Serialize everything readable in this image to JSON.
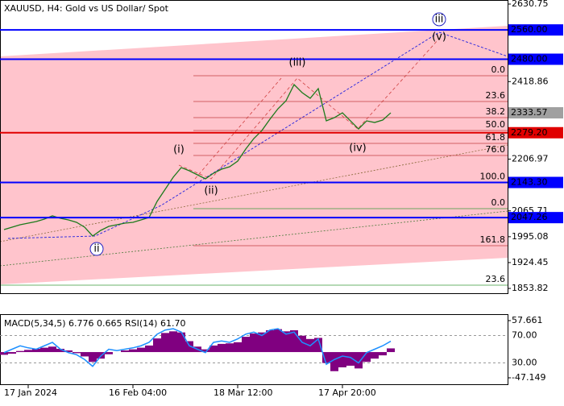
{
  "chart_data": {
    "type": "line",
    "title": "XAUUSD, H4:  Gold vs US Dollar/ Spot",
    "categories": [
      null,
      null,
      null,
      "17 Jan 2024",
      null,
      null,
      null,
      null,
      null,
      null,
      null,
      null,
      null,
      null,
      null,
      null,
      "16 Feb 04:00",
      null,
      null,
      null,
      null,
      null,
      null,
      null,
      null,
      null,
      null,
      null,
      null,
      "18 Mar 12:00",
      null,
      null,
      null,
      null,
      null,
      null,
      null,
      null,
      null,
      null,
      null,
      null,
      "17 Apr 20:00",
      null,
      null,
      null,
      null,
      null,
      null
    ],
    "series": [
      {
        "name": "XAUUSD",
        "color": "#1b7a1b",
        "values": [
          2014.6,
          2021.2,
          2027.8,
          2032.2,
          2036.6,
          2043.2,
          2052.0,
          2045.4,
          2041.0,
          2034.4,
          2021.2,
          1997.0,
          2012.4,
          2023.4,
          2027.8,
          2032.2,
          2034.4,
          2041.0,
          2047.6,
          2091.6,
          2124.6,
          2157.6,
          2184.0,
          2175.2,
          2164.2,
          2153.2,
          2168.6,
          2179.6,
          2186.2,
          2201.6,
          2234.6,
          2263.2,
          2285.2,
          2316.0,
          2344.6,
          2366.6,
          2410.7,
          2388.7,
          2373.2,
          2399.7,
          2311.6,
          2320.4,
          2333.6,
          2311.6,
          2289.6,
          2311.6,
          2307.2,
          2313.8,
          2333.57
        ]
      }
    ],
    "ylim": [
      1840.7,
      2639.6
    ],
    "yticks": [
      2630.75,
      2418.86,
      2206.97,
      2065.71,
      1995.08,
      1924.45,
      1853.82
    ],
    "price_label": {
      "value": 2333.57,
      "color": "#a0a0a0"
    },
    "levels": [
      {
        "value": 2560.0,
        "label": "2560.00",
        "color": "#0000ff"
      },
      {
        "value": 2480.0,
        "label": "2480.00",
        "color": "#0000ff"
      },
      {
        "value": 2279.2,
        "label": "2279.20",
        "color": "#e00000"
      },
      {
        "value": 2143.3,
        "label": "2143.30",
        "color": "#0000ff"
      },
      {
        "value": 2047.26,
        "label": "2047.26",
        "color": "#0000ff"
      }
    ],
    "fib_levels": [
      {
        "value": 2434.9,
        "label": "0.0",
        "color": "#c04040"
      },
      {
        "value": 2364.5,
        "label": "23.6",
        "color": "#c04040"
      },
      {
        "value": 2320.5,
        "label": "38.2",
        "color": "#c04040"
      },
      {
        "value": 2285.2,
        "label": "50.0",
        "color": "#c04040"
      },
      {
        "value": 2250.0,
        "label": "61.8",
        "color": "#c04040"
      },
      {
        "value": 2217.0,
        "label": "76.0",
        "color": "#c04040"
      },
      {
        "value": 2143.4,
        "label": "100.0",
        "color": "#c04040"
      },
      {
        "value": 2071.8,
        "label": "0.0",
        "color": "#3a9a3a"
      },
      {
        "value": 1970.5,
        "label": "161.8",
        "color": "#c04040"
      },
      {
        "value": 1862.7,
        "label": "23.6",
        "color": "#3a9a3a"
      }
    ],
    "annotations": [
      {
        "text": "(i)",
        "x": 21.7,
        "y": 2232.4,
        "color": "#d02020"
      },
      {
        "text": "(ii)",
        "x": 25.7,
        "y": 2120.2,
        "color": "#d02020"
      },
      {
        "text": "(iii)",
        "x": 36.4,
        "y": 2470.1,
        "color": "#d02020"
      },
      {
        "text": "(iv)",
        "x": 43.9,
        "y": 2236.8,
        "color": "#d02020"
      },
      {
        "text": "(v)",
        "x": 54,
        "y": 2540.5,
        "color": "#d02020"
      },
      {
        "text": "ii",
        "x": 11.5,
        "y": 1961.7,
        "color": "#2020c0",
        "circled": true
      },
      {
        "text": "iii",
        "x": 54,
        "y": 2589.0,
        "color": "#2020c0",
        "circled": true
      }
    ],
    "indicator": {
      "title": "MACD(5,34,5) 6.776 0.665 RSI(14) 61.70",
      "ylim": [
        -57.5,
        68
      ],
      "yticks": [
        57.661,
        -47.149
      ],
      "y2lim": [
        0,
        100
      ],
      "y2ticks": [
        {
          "value": 70,
          "label": "70.00"
        },
        {
          "value": 30,
          "label": "30.00"
        }
      ],
      "series": [
        {
          "name": "MACD",
          "color": "#800080",
          "values": [
            -5,
            -3,
            2,
            4,
            6,
            8,
            10,
            6,
            3,
            -2,
            -8,
            -18,
            -12,
            -4,
            0,
            3,
            5,
            8,
            12,
            25,
            35,
            38,
            36,
            20,
            10,
            5,
            12,
            15,
            16,
            18,
            28,
            34,
            36,
            40,
            42,
            38,
            40,
            30,
            24,
            26,
            -20,
            -35,
            -28,
            -25,
            -30,
            -18,
            -12,
            -6,
            6.776
          ]
        },
        {
          "name": "RSI",
          "color": "#1e90ff",
          "axis": "y2",
          "values": [
            45,
            50,
            55,
            52,
            50,
            55,
            60,
            50,
            45,
            42,
            35,
            25,
            40,
            50,
            48,
            50,
            52,
            55,
            60,
            72,
            78,
            80,
            75,
            55,
            50,
            45,
            60,
            62,
            60,
            65,
            72,
            75,
            70,
            78,
            80,
            72,
            75,
            60,
            55,
            65,
            28,
            35,
            40,
            38,
            30,
            45,
            50,
            55,
            61.7
          ]
        }
      ]
    }
  }
}
